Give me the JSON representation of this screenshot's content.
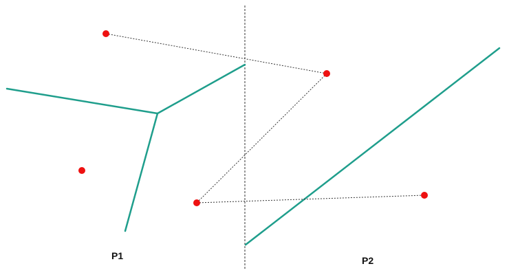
{
  "labels": {
    "p1": "P1",
    "p2": "P2"
  },
  "colors": {
    "site": "#ee1111",
    "edge": "#1f9e8c",
    "link": "#333333",
    "divider": "#333333"
  }
}
